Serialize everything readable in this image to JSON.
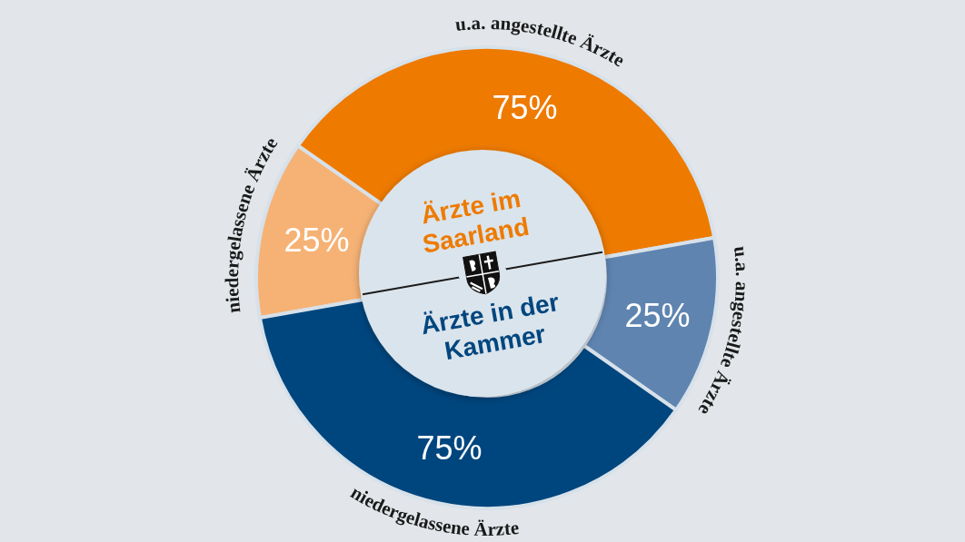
{
  "chart_data": {
    "type": "donut",
    "categories": [
      "niedergelassene Ärzte",
      "u.a. angestellte Ärzte",
      "u.a. angestellte Ärzte",
      "niedergelassene Ärzte"
    ],
    "values": [
      25,
      75,
      25,
      75
    ],
    "colors": [
      "#f6b275",
      "#ee7a00",
      "#5f84b0",
      "#00467e"
    ],
    "value_labels": [
      "25%",
      "75%",
      "25%",
      "75%"
    ],
    "annotations": [
      "Ärzte im Saarland",
      "Ärzte in der Kammer"
    ]
  }
}
